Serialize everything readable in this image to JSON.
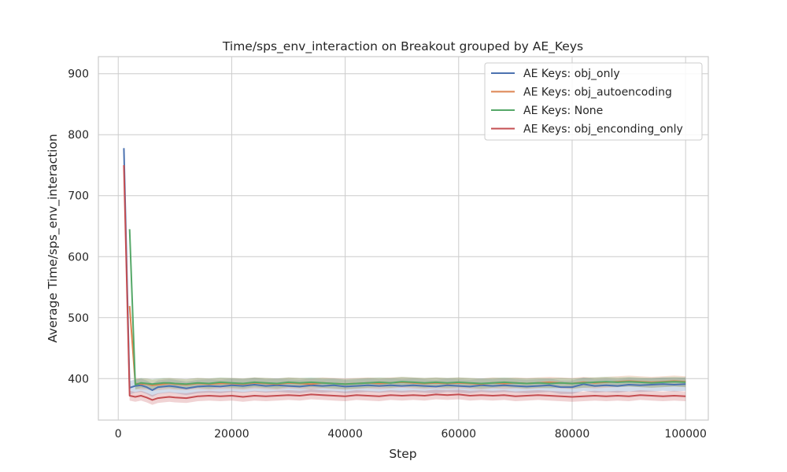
{
  "chart_data": {
    "type": "line",
    "title": "Time/sps_env_interaction on Breakout grouped by AE_Keys",
    "xlabel": "Step",
    "ylabel": "Average Time/sps_env_interaction",
    "xlim": [
      -3500,
      104000
    ],
    "ylim": [
      332,
      928
    ],
    "xticks": [
      0,
      20000,
      40000,
      60000,
      80000,
      100000
    ],
    "yticks": [
      400,
      500,
      600,
      700,
      800,
      900
    ],
    "grid": true,
    "legend_position": "top-right",
    "series": [
      {
        "name": "AE Keys: obj_only",
        "color": "#4c72b0",
        "points": [
          [
            1000,
            778
          ],
          [
            2000,
            385
          ],
          [
            3000,
            388
          ],
          [
            4000,
            389
          ],
          [
            5000,
            386
          ],
          [
            6000,
            381
          ],
          [
            7000,
            386
          ],
          [
            8000,
            387
          ],
          [
            9000,
            388
          ],
          [
            10000,
            387
          ],
          [
            12000,
            384
          ],
          [
            14000,
            387
          ],
          [
            16000,
            388
          ],
          [
            18000,
            387
          ],
          [
            20000,
            389
          ],
          [
            22000,
            388
          ],
          [
            24000,
            390
          ],
          [
            26000,
            388
          ],
          [
            28000,
            389
          ],
          [
            30000,
            388
          ],
          [
            32000,
            387
          ],
          [
            34000,
            389
          ],
          [
            36000,
            388
          ],
          [
            38000,
            389
          ],
          [
            40000,
            387
          ],
          [
            42000,
            388
          ],
          [
            44000,
            389
          ],
          [
            46000,
            388
          ],
          [
            48000,
            389
          ],
          [
            50000,
            388
          ],
          [
            52000,
            389
          ],
          [
            54000,
            388
          ],
          [
            56000,
            387
          ],
          [
            58000,
            389
          ],
          [
            60000,
            388
          ],
          [
            62000,
            387
          ],
          [
            64000,
            389
          ],
          [
            66000,
            388
          ],
          [
            68000,
            389
          ],
          [
            70000,
            388
          ],
          [
            72000,
            387
          ],
          [
            74000,
            388
          ],
          [
            76000,
            389
          ],
          [
            78000,
            386
          ],
          [
            80000,
            386
          ],
          [
            82000,
            391
          ],
          [
            84000,
            388
          ],
          [
            86000,
            389
          ],
          [
            88000,
            388
          ],
          [
            90000,
            390
          ],
          [
            92000,
            389
          ],
          [
            94000,
            390
          ],
          [
            96000,
            391
          ],
          [
            98000,
            390
          ],
          [
            100000,
            391
          ]
        ],
        "band": 11
      },
      {
        "name": "AE Keys: obj_autoencoding",
        "color": "#dd8452",
        "points": [
          [
            2000,
            519
          ],
          [
            3000,
            392
          ],
          [
            4000,
            391
          ],
          [
            5000,
            391
          ],
          [
            6000,
            389
          ],
          [
            7000,
            390
          ],
          [
            8000,
            391
          ],
          [
            9000,
            392
          ],
          [
            10000,
            391
          ],
          [
            12000,
            390
          ],
          [
            14000,
            392
          ],
          [
            16000,
            391
          ],
          [
            18000,
            392
          ],
          [
            20000,
            392
          ],
          [
            22000,
            391
          ],
          [
            24000,
            393
          ],
          [
            26000,
            392
          ],
          [
            28000,
            391
          ],
          [
            30000,
            393
          ],
          [
            32000,
            392
          ],
          [
            34000,
            391
          ],
          [
            36000,
            393
          ],
          [
            38000,
            392
          ],
          [
            40000,
            391
          ],
          [
            42000,
            392
          ],
          [
            44000,
            393
          ],
          [
            46000,
            392
          ],
          [
            48000,
            393
          ],
          [
            50000,
            394
          ],
          [
            52000,
            393
          ],
          [
            54000,
            392
          ],
          [
            56000,
            393
          ],
          [
            58000,
            392
          ],
          [
            60000,
            393
          ],
          [
            62000,
            392
          ],
          [
            64000,
            391
          ],
          [
            66000,
            393
          ],
          [
            68000,
            392
          ],
          [
            70000,
            393
          ],
          [
            72000,
            392
          ],
          [
            74000,
            393
          ],
          [
            76000,
            394
          ],
          [
            78000,
            393
          ],
          [
            80000,
            392
          ],
          [
            82000,
            394
          ],
          [
            84000,
            393
          ],
          [
            86000,
            394
          ],
          [
            88000,
            395
          ],
          [
            90000,
            396
          ],
          [
            92000,
            395
          ],
          [
            94000,
            394
          ],
          [
            96000,
            395
          ],
          [
            98000,
            396
          ],
          [
            100000,
            395
          ]
        ],
        "band": 9
      },
      {
        "name": "AE Keys: None",
        "color": "#55a868",
        "points": [
          [
            2000,
            645
          ],
          [
            3000,
            390
          ],
          [
            4000,
            393
          ],
          [
            5000,
            392
          ],
          [
            6000,
            391
          ],
          [
            7000,
            392
          ],
          [
            8000,
            393
          ],
          [
            9000,
            393
          ],
          [
            10000,
            392
          ],
          [
            12000,
            391
          ],
          [
            14000,
            393
          ],
          [
            16000,
            392
          ],
          [
            18000,
            394
          ],
          [
            20000,
            393
          ],
          [
            22000,
            392
          ],
          [
            24000,
            394
          ],
          [
            26000,
            393
          ],
          [
            28000,
            392
          ],
          [
            30000,
            394
          ],
          [
            32000,
            393
          ],
          [
            34000,
            394
          ],
          [
            36000,
            393
          ],
          [
            38000,
            392
          ],
          [
            40000,
            391
          ],
          [
            42000,
            392
          ],
          [
            44000,
            393
          ],
          [
            46000,
            394
          ],
          [
            48000,
            393
          ],
          [
            50000,
            395
          ],
          [
            52000,
            394
          ],
          [
            54000,
            393
          ],
          [
            56000,
            394
          ],
          [
            58000,
            393
          ],
          [
            60000,
            394
          ],
          [
            62000,
            393
          ],
          [
            64000,
            392
          ],
          [
            66000,
            393
          ],
          [
            68000,
            394
          ],
          [
            70000,
            393
          ],
          [
            72000,
            392
          ],
          [
            74000,
            393
          ],
          [
            76000,
            392
          ],
          [
            78000,
            393
          ],
          [
            80000,
            392
          ],
          [
            82000,
            393
          ],
          [
            84000,
            394
          ],
          [
            86000,
            395
          ],
          [
            88000,
            394
          ],
          [
            90000,
            395
          ],
          [
            92000,
            394
          ],
          [
            94000,
            393
          ],
          [
            96000,
            394
          ],
          [
            98000,
            395
          ],
          [
            100000,
            394
          ]
        ],
        "band": 8
      },
      {
        "name": "AE Keys: obj_enconding_only",
        "color": "#c44e52",
        "points": [
          [
            1000,
            750
          ],
          [
            2000,
            372
          ],
          [
            3000,
            370
          ],
          [
            4000,
            372
          ],
          [
            5000,
            369
          ],
          [
            6000,
            365
          ],
          [
            7000,
            368
          ],
          [
            8000,
            369
          ],
          [
            9000,
            370
          ],
          [
            10000,
            369
          ],
          [
            12000,
            368
          ],
          [
            14000,
            371
          ],
          [
            16000,
            372
          ],
          [
            18000,
            371
          ],
          [
            20000,
            372
          ],
          [
            22000,
            370
          ],
          [
            24000,
            372
          ],
          [
            26000,
            371
          ],
          [
            28000,
            372
          ],
          [
            30000,
            373
          ],
          [
            32000,
            372
          ],
          [
            34000,
            374
          ],
          [
            36000,
            373
          ],
          [
            38000,
            372
          ],
          [
            40000,
            371
          ],
          [
            42000,
            373
          ],
          [
            44000,
            372
          ],
          [
            46000,
            371
          ],
          [
            48000,
            373
          ],
          [
            50000,
            372
          ],
          [
            52000,
            373
          ],
          [
            54000,
            372
          ],
          [
            56000,
            374
          ],
          [
            58000,
            373
          ],
          [
            60000,
            374
          ],
          [
            62000,
            372
          ],
          [
            64000,
            373
          ],
          [
            66000,
            372
          ],
          [
            68000,
            373
          ],
          [
            70000,
            371
          ],
          [
            72000,
            372
          ],
          [
            74000,
            373
          ],
          [
            76000,
            372
          ],
          [
            78000,
            371
          ],
          [
            80000,
            370
          ],
          [
            82000,
            371
          ],
          [
            84000,
            372
          ],
          [
            86000,
            371
          ],
          [
            88000,
            372
          ],
          [
            90000,
            371
          ],
          [
            92000,
            373
          ],
          [
            94000,
            372
          ],
          [
            96000,
            371
          ],
          [
            98000,
            372
          ],
          [
            100000,
            371
          ]
        ],
        "band": 8
      }
    ]
  }
}
